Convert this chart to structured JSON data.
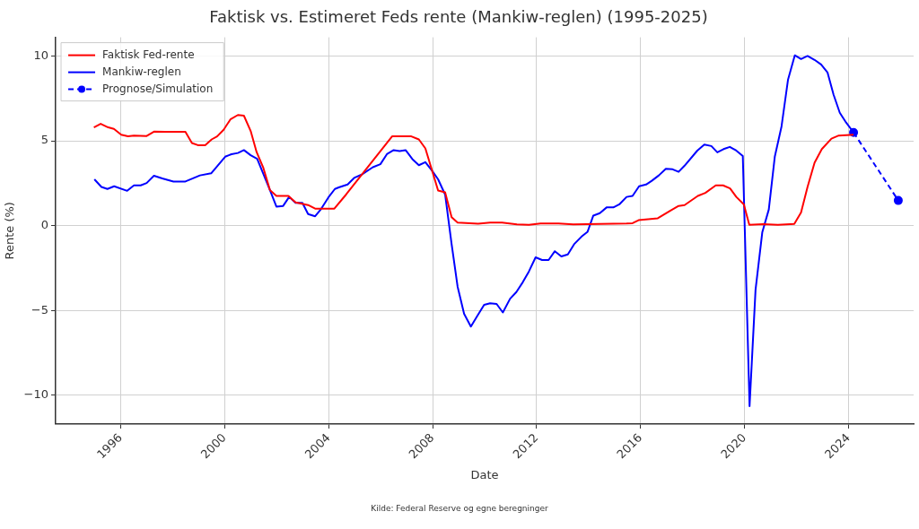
{
  "chart_data": {
    "type": "line",
    "title": "Faktisk vs. Estimeret Feds rente (Mankiw-reglen) (1995-2025)",
    "xlabel": "Date",
    "ylabel": "Rente (%)",
    "annotations": [
      "Kilde: Federal Reserve og egne beregninger"
    ],
    "xlim": [
      1993.5,
      2026.5
    ],
    "xticks": [
      1996,
      2000,
      2004,
      2008,
      2012,
      2016,
      2020,
      2024
    ],
    "ylim": [
      -11.7,
      11.1
    ],
    "yticks": [
      -10,
      -5,
      0,
      5,
      10
    ],
    "grid": true,
    "legend": "top left",
    "series": [
      {
        "name": "Faktisk Fed-rente",
        "color": "#ff0000",
        "x": [
          1994.97,
          1995.23,
          1995.52,
          1995.74,
          1996.02,
          1996.28,
          1996.51,
          1997.0,
          1997.28,
          1997.71,
          1998.49,
          1998.74,
          1998.97,
          1999.25,
          1999.5,
          1999.71,
          1999.96,
          2000.22,
          2000.51,
          2000.74,
          2001.0,
          2001.23,
          2001.48,
          2001.74,
          2001.99,
          2002.45,
          2002.73,
          2003.21,
          2003.48,
          2004.22,
          2004.67,
          2006.44,
          2007.18,
          2007.47,
          2007.72,
          2008.21,
          2008.48,
          2008.73,
          2008.96,
          2009.75,
          2010.21,
          2010.67,
          2011.24,
          2011.7,
          2012.15,
          2012.84,
          2013.41,
          2015.46,
          2015.69,
          2015.92,
          2016.66,
          2017.12,
          2017.46,
          2017.69,
          2018.2,
          2018.49,
          2018.89,
          2019.17,
          2019.44,
          2019.68,
          2019.97,
          2020.18,
          2020.71,
          2021.28,
          2021.91,
          2022.17,
          2022.42,
          2022.69,
          2022.97,
          2023.34,
          2023.62,
          2024.19
        ],
        "values": [
          5.79,
          6.0,
          5.79,
          5.7,
          5.36,
          5.26,
          5.31,
          5.28,
          5.54,
          5.53,
          5.53,
          4.87,
          4.74,
          4.74,
          5.08,
          5.26,
          5.65,
          6.26,
          6.52,
          6.48,
          5.58,
          4.33,
          3.44,
          2.1,
          1.75,
          1.75,
          1.37,
          1.21,
          1.0,
          1.0,
          1.83,
          5.26,
          5.26,
          5.08,
          4.55,
          2.07,
          1.96,
          0.5,
          0.18,
          0.11,
          0.18,
          0.18,
          0.07,
          0.05,
          0.12,
          0.12,
          0.07,
          0.12,
          0.14,
          0.32,
          0.43,
          0.86,
          1.16,
          1.21,
          1.75,
          1.93,
          2.37,
          2.37,
          2.19,
          1.69,
          1.25,
          0.05,
          0.08,
          0.05,
          0.1,
          0.77,
          2.28,
          3.71,
          4.51,
          5.13,
          5.31,
          5.36
        ]
      },
      {
        "name": "Mankiw-reglen",
        "color": "#0000ff",
        "x": [
          1994.99,
          1995.26,
          1995.49,
          1995.75,
          1996.25,
          1996.51,
          1996.77,
          1997.0,
          1997.28,
          1997.6,
          1998.03,
          1998.49,
          1998.74,
          1999.05,
          1999.48,
          2000.02,
          2000.26,
          2000.51,
          2000.74,
          2001.0,
          2001.25,
          2001.48,
          2001.74,
          2001.99,
          2002.25,
          2002.48,
          2002.73,
          2002.99,
          2003.21,
          2003.48,
          2003.71,
          2003.99,
          2004.24,
          2004.39,
          2004.73,
          2004.98,
          2005.25,
          2005.7,
          2005.99,
          2006.24,
          2006.5,
          2006.73,
          2006.96,
          2007.22,
          2007.47,
          2007.72,
          2007.99,
          2008.21,
          2008.48,
          2008.73,
          2008.96,
          2009.21,
          2009.47,
          2009.73,
          2009.98,
          2010.21,
          2010.46,
          2010.7,
          2010.98,
          2011.22,
          2011.47,
          2011.7,
          2011.96,
          2012.21,
          2012.46,
          2012.7,
          2012.95,
          2013.2,
          2013.44,
          2013.72,
          2013.96,
          2014.18,
          2014.43,
          2014.69,
          2014.95,
          2015.18,
          2015.46,
          2015.69,
          2015.94,
          2016.21,
          2016.43,
          2016.7,
          2016.97,
          2017.23,
          2017.46,
          2017.69,
          2018.18,
          2018.45,
          2018.72,
          2018.95,
          2019.19,
          2019.43,
          2019.68,
          2019.93,
          2020.19,
          2020.42,
          2020.68,
          2020.93,
          2021.16,
          2021.42,
          2021.67,
          2021.93,
          2022.17,
          2022.42,
          2022.69,
          2022.94,
          2023.19,
          2023.42,
          2023.66,
          2023.91,
          2024.19
        ],
        "values": [
          2.73,
          2.28,
          2.16,
          2.32,
          2.05,
          2.37,
          2.37,
          2.51,
          2.94,
          2.78,
          2.6,
          2.6,
          2.76,
          2.96,
          3.08,
          4.06,
          4.21,
          4.28,
          4.45,
          4.15,
          3.94,
          3.08,
          2.1,
          1.12,
          1.16,
          1.69,
          1.34,
          1.34,
          0.68,
          0.55,
          0.98,
          1.66,
          2.16,
          2.25,
          2.42,
          2.81,
          2.99,
          3.44,
          3.62,
          4.21,
          4.45,
          4.39,
          4.45,
          3.92,
          3.56,
          3.74,
          3.21,
          2.73,
          1.83,
          -1.1,
          -3.6,
          -5.2,
          -5.95,
          -5.29,
          -4.67,
          -4.58,
          -4.62,
          -5.12,
          -4.31,
          -3.92,
          -3.33,
          -2.71,
          -1.87,
          -2.03,
          -2.03,
          -1.51,
          -1.82,
          -1.7,
          -1.1,
          -0.66,
          -0.36,
          0.59,
          0.73,
          1.07,
          1.07,
          1.25,
          1.69,
          1.75,
          2.32,
          2.42,
          2.64,
          2.96,
          3.35,
          3.32,
          3.17,
          3.53,
          4.42,
          4.78,
          4.69,
          4.32,
          4.51,
          4.64,
          4.42,
          4.1,
          -10.64,
          -3.78,
          -0.39,
          0.95,
          4.06,
          5.85,
          8.61,
          10.04,
          9.82,
          10.0,
          9.77,
          9.5,
          9.02,
          7.72,
          6.65,
          6.06,
          5.49
        ]
      },
      {
        "name": "Prognose/Simulation",
        "color": "#0000ff",
        "marker": "circle",
        "line_style": "dashed",
        "x": [
          2024.19,
          2025.91
        ],
        "values": [
          5.49,
          1.48
        ]
      }
    ]
  }
}
